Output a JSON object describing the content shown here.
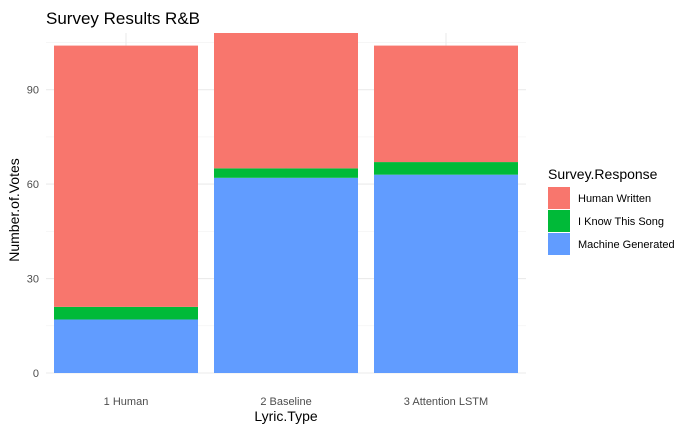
{
  "chart_data": {
    "type": "bar",
    "stacked": true,
    "title": "Survey Results R&B",
    "xlabel": "Lyric.Type",
    "ylabel": "Number.of.Votes",
    "categories": [
      "1 Human",
      "2 Baseline",
      "3 Attention LSTM"
    ],
    "series": [
      {
        "name": "Machine Generated",
        "color": "#619CFF",
        "values": [
          17,
          62,
          63
        ]
      },
      {
        "name": "I Know This Song",
        "color": "#00BA38",
        "values": [
          4,
          3,
          4
        ]
      },
      {
        "name": "Human Written",
        "color": "#F8766D",
        "values": [
          83,
          43,
          37
        ]
      }
    ],
    "ylim": [
      0,
      108
    ],
    "yticks": [
      0,
      30,
      60,
      90
    ],
    "legend": {
      "title": "Survey.Response",
      "position": "right",
      "order": [
        "Human Written",
        "I Know This Song",
        "Machine Generated"
      ]
    },
    "grid": true
  }
}
